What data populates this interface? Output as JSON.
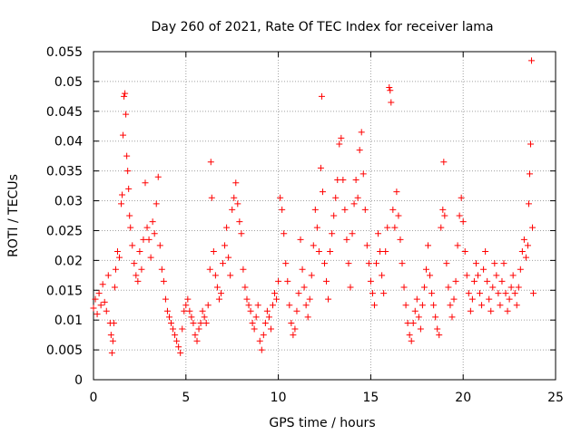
{
  "chart_data": {
    "type": "scatter",
    "title": "Day 260 of 2021, Rate Of TEC Index for receiver lama",
    "xlabel": "GPS time / hours",
    "ylabel": "ROTI / TECUs",
    "xlim": [
      0,
      25
    ],
    "ylim": [
      0,
      0.055
    ],
    "xticks": [
      0,
      5,
      10,
      15,
      20,
      25
    ],
    "xtick_labels": [
      "0",
      "5",
      "10",
      "15",
      "20",
      "25"
    ],
    "yticks": [
      0,
      0.005,
      0.01,
      0.015,
      0.02,
      0.025,
      0.03,
      0.035,
      0.04,
      0.045,
      0.05,
      0.055
    ],
    "ytick_labels": [
      "0",
      "0.005",
      "0.01",
      "0.015",
      "0.02",
      "0.025",
      "0.03",
      "0.035",
      "0.04",
      "0.045",
      "0.05",
      "0.055"
    ],
    "grid": true,
    "marker": "+",
    "series_color": "#ff0000",
    "series": [
      {
        "name": "ROTI",
        "points": [
          [
            0.0,
            0.012
          ],
          [
            0.1,
            0.0135
          ],
          [
            0.2,
            0.011
          ],
          [
            0.3,
            0.0145
          ],
          [
            0.4,
            0.0125
          ],
          [
            0.5,
            0.016
          ],
          [
            0.6,
            0.013
          ],
          [
            0.7,
            0.0115
          ],
          [
            0.8,
            0.0175
          ],
          [
            0.9,
            0.0095
          ],
          [
            0.95,
            0.0075
          ],
          [
            1.0,
            0.0045
          ],
          [
            1.05,
            0.0065
          ],
          [
            1.1,
            0.0095
          ],
          [
            1.15,
            0.0155
          ],
          [
            1.2,
            0.0185
          ],
          [
            1.3,
            0.0215
          ],
          [
            1.4,
            0.0205
          ],
          [
            1.5,
            0.0295
          ],
          [
            1.55,
            0.031
          ],
          [
            1.6,
            0.041
          ],
          [
            1.65,
            0.0475
          ],
          [
            1.7,
            0.048
          ],
          [
            1.75,
            0.0445
          ],
          [
            1.8,
            0.0375
          ],
          [
            1.85,
            0.035
          ],
          [
            1.9,
            0.032
          ],
          [
            1.95,
            0.0275
          ],
          [
            2.0,
            0.0255
          ],
          [
            2.1,
            0.0225
          ],
          [
            2.2,
            0.0195
          ],
          [
            2.3,
            0.0175
          ],
          [
            2.4,
            0.0165
          ],
          [
            2.5,
            0.0215
          ],
          [
            2.6,
            0.0185
          ],
          [
            2.7,
            0.0235
          ],
          [
            2.8,
            0.033
          ],
          [
            2.9,
            0.0255
          ],
          [
            3.0,
            0.0235
          ],
          [
            3.1,
            0.0205
          ],
          [
            3.2,
            0.0265
          ],
          [
            3.3,
            0.0245
          ],
          [
            3.4,
            0.0295
          ],
          [
            3.5,
            0.034
          ],
          [
            3.6,
            0.0225
          ],
          [
            3.7,
            0.0185
          ],
          [
            3.8,
            0.0165
          ],
          [
            3.9,
            0.0135
          ],
          [
            4.0,
            0.0115
          ],
          [
            4.1,
            0.0105
          ],
          [
            4.2,
            0.0095
          ],
          [
            4.3,
            0.0085
          ],
          [
            4.4,
            0.0075
          ],
          [
            4.5,
            0.0065
          ],
          [
            4.6,
            0.0055
          ],
          [
            4.7,
            0.0045
          ],
          [
            4.8,
            0.0085
          ],
          [
            4.9,
            0.0115
          ],
          [
            5.0,
            0.0125
          ],
          [
            5.1,
            0.0135
          ],
          [
            5.2,
            0.0115
          ],
          [
            5.3,
            0.0105
          ],
          [
            5.4,
            0.0095
          ],
          [
            5.5,
            0.0075
          ],
          [
            5.6,
            0.0065
          ],
          [
            5.7,
            0.0085
          ],
          [
            5.8,
            0.0095
          ],
          [
            5.9,
            0.0115
          ],
          [
            6.0,
            0.0105
          ],
          [
            6.1,
            0.0095
          ],
          [
            6.2,
            0.0125
          ],
          [
            6.3,
            0.0185
          ],
          [
            6.35,
            0.0365
          ],
          [
            6.4,
            0.0305
          ],
          [
            6.5,
            0.0215
          ],
          [
            6.6,
            0.0175
          ],
          [
            6.7,
            0.0155
          ],
          [
            6.8,
            0.0135
          ],
          [
            6.9,
            0.0145
          ],
          [
            7.0,
            0.0195
          ],
          [
            7.1,
            0.0225
          ],
          [
            7.2,
            0.0255
          ],
          [
            7.3,
            0.0205
          ],
          [
            7.4,
            0.0175
          ],
          [
            7.5,
            0.0285
          ],
          [
            7.6,
            0.0305
          ],
          [
            7.7,
            0.033
          ],
          [
            7.8,
            0.0295
          ],
          [
            7.9,
            0.0265
          ],
          [
            8.0,
            0.0245
          ],
          [
            8.1,
            0.0185
          ],
          [
            8.2,
            0.0155
          ],
          [
            8.3,
            0.0135
          ],
          [
            8.4,
            0.0125
          ],
          [
            8.5,
            0.0115
          ],
          [
            8.6,
            0.0095
          ],
          [
            8.7,
            0.0085
          ],
          [
            8.8,
            0.0105
          ],
          [
            8.9,
            0.0125
          ],
          [
            9.0,
            0.0065
          ],
          [
            9.1,
            0.005
          ],
          [
            9.2,
            0.0075
          ],
          [
            9.3,
            0.0095
          ],
          [
            9.4,
            0.0115
          ],
          [
            9.5,
            0.0105
          ],
          [
            9.6,
            0.0085
          ],
          [
            9.7,
            0.0125
          ],
          [
            9.8,
            0.0145
          ],
          [
            9.9,
            0.0135
          ],
          [
            10.0,
            0.0165
          ],
          [
            10.1,
            0.0305
          ],
          [
            10.2,
            0.0285
          ],
          [
            10.3,
            0.0245
          ],
          [
            10.4,
            0.0195
          ],
          [
            10.5,
            0.0165
          ],
          [
            10.6,
            0.0125
          ],
          [
            10.7,
            0.0095
          ],
          [
            10.8,
            0.0075
          ],
          [
            10.9,
            0.0085
          ],
          [
            11.0,
            0.0115
          ],
          [
            11.1,
            0.0145
          ],
          [
            11.2,
            0.0235
          ],
          [
            11.3,
            0.0185
          ],
          [
            11.4,
            0.0155
          ],
          [
            11.5,
            0.0125
          ],
          [
            11.6,
            0.0105
          ],
          [
            11.7,
            0.0135
          ],
          [
            11.8,
            0.0175
          ],
          [
            11.9,
            0.0225
          ],
          [
            12.0,
            0.0285
          ],
          [
            12.1,
            0.0255
          ],
          [
            12.2,
            0.0215
          ],
          [
            12.3,
            0.0355
          ],
          [
            12.35,
            0.0475
          ],
          [
            12.4,
            0.0315
          ],
          [
            12.5,
            0.0195
          ],
          [
            12.6,
            0.0165
          ],
          [
            12.7,
            0.0135
          ],
          [
            12.8,
            0.0215
          ],
          [
            12.9,
            0.0245
          ],
          [
            13.0,
            0.0275
          ],
          [
            13.1,
            0.0305
          ],
          [
            13.2,
            0.0335
          ],
          [
            13.3,
            0.0395
          ],
          [
            13.4,
            0.0405
          ],
          [
            13.5,
            0.0335
          ],
          [
            13.6,
            0.0285
          ],
          [
            13.7,
            0.0235
          ],
          [
            13.8,
            0.0195
          ],
          [
            13.9,
            0.0155
          ],
          [
            14.0,
            0.0245
          ],
          [
            14.1,
            0.0295
          ],
          [
            14.2,
            0.0335
          ],
          [
            14.3,
            0.0305
          ],
          [
            14.4,
            0.0385
          ],
          [
            14.5,
            0.0415
          ],
          [
            14.6,
            0.0345
          ],
          [
            14.7,
            0.0285
          ],
          [
            14.8,
            0.0225
          ],
          [
            14.9,
            0.0195
          ],
          [
            15.0,
            0.0165
          ],
          [
            15.1,
            0.0145
          ],
          [
            15.2,
            0.0125
          ],
          [
            15.3,
            0.0195
          ],
          [
            15.4,
            0.0245
          ],
          [
            15.5,
            0.0215
          ],
          [
            15.6,
            0.0175
          ],
          [
            15.7,
            0.0145
          ],
          [
            15.8,
            0.0215
          ],
          [
            15.9,
            0.0255
          ],
          [
            16.0,
            0.049
          ],
          [
            16.05,
            0.0485
          ],
          [
            16.1,
            0.0465
          ],
          [
            16.2,
            0.0285
          ],
          [
            16.3,
            0.0255
          ],
          [
            16.4,
            0.0315
          ],
          [
            16.5,
            0.0275
          ],
          [
            16.6,
            0.0235
          ],
          [
            16.7,
            0.0195
          ],
          [
            16.8,
            0.0155
          ],
          [
            16.9,
            0.0125
          ],
          [
            17.0,
            0.0095
          ],
          [
            17.1,
            0.0075
          ],
          [
            17.2,
            0.0065
          ],
          [
            17.3,
            0.0095
          ],
          [
            17.4,
            0.0115
          ],
          [
            17.5,
            0.0135
          ],
          [
            17.6,
            0.0105
          ],
          [
            17.7,
            0.0085
          ],
          [
            17.8,
            0.0125
          ],
          [
            17.9,
            0.0155
          ],
          [
            18.0,
            0.0185
          ],
          [
            18.1,
            0.0225
          ],
          [
            18.2,
            0.0175
          ],
          [
            18.3,
            0.0145
          ],
          [
            18.4,
            0.0125
          ],
          [
            18.5,
            0.0105
          ],
          [
            18.6,
            0.0085
          ],
          [
            18.7,
            0.0075
          ],
          [
            18.8,
            0.0255
          ],
          [
            18.9,
            0.0285
          ],
          [
            18.95,
            0.0365
          ],
          [
            19.0,
            0.0275
          ],
          [
            19.1,
            0.0195
          ],
          [
            19.2,
            0.0155
          ],
          [
            19.3,
            0.0125
          ],
          [
            19.4,
            0.0105
          ],
          [
            19.5,
            0.0135
          ],
          [
            19.6,
            0.0165
          ],
          [
            19.7,
            0.0225
          ],
          [
            19.8,
            0.0275
          ],
          [
            19.9,
            0.0305
          ],
          [
            20.0,
            0.0265
          ],
          [
            20.1,
            0.0215
          ],
          [
            20.2,
            0.0175
          ],
          [
            20.3,
            0.0145
          ],
          [
            20.4,
            0.0115
          ],
          [
            20.5,
            0.0135
          ],
          [
            20.6,
            0.0165
          ],
          [
            20.7,
            0.0195
          ],
          [
            20.8,
            0.0175
          ],
          [
            20.9,
            0.0145
          ],
          [
            21.0,
            0.0125
          ],
          [
            21.1,
            0.0185
          ],
          [
            21.2,
            0.0215
          ],
          [
            21.3,
            0.0165
          ],
          [
            21.4,
            0.0135
          ],
          [
            21.5,
            0.0115
          ],
          [
            21.6,
            0.0155
          ],
          [
            21.7,
            0.0195
          ],
          [
            21.8,
            0.0175
          ],
          [
            21.9,
            0.0145
          ],
          [
            22.0,
            0.0125
          ],
          [
            22.1,
            0.0165
          ],
          [
            22.2,
            0.0195
          ],
          [
            22.3,
            0.0145
          ],
          [
            22.4,
            0.0115
          ],
          [
            22.5,
            0.0135
          ],
          [
            22.6,
            0.0155
          ],
          [
            22.7,
            0.0175
          ],
          [
            22.8,
            0.0145
          ],
          [
            22.9,
            0.0125
          ],
          [
            23.0,
            0.0155
          ],
          [
            23.1,
            0.0185
          ],
          [
            23.2,
            0.0215
          ],
          [
            23.3,
            0.0235
          ],
          [
            23.4,
            0.0205
          ],
          [
            23.5,
            0.0225
          ],
          [
            23.55,
            0.0295
          ],
          [
            23.6,
            0.0345
          ],
          [
            23.65,
            0.0395
          ],
          [
            23.7,
            0.0535
          ],
          [
            23.75,
            0.0255
          ],
          [
            23.8,
            0.0145
          ]
        ]
      }
    ]
  }
}
